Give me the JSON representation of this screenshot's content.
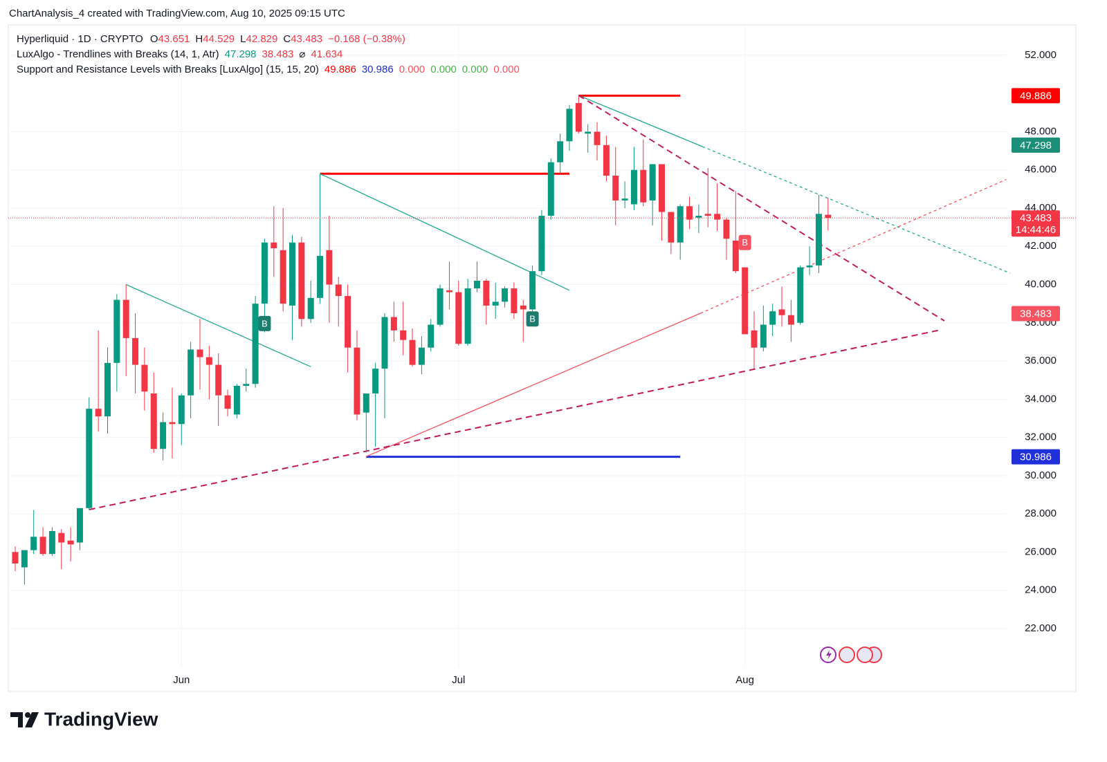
{
  "header": {
    "attribution": "ChartAnalysis_4 created with TradingView.com, Aug 10, 2025 09:15 UTC"
  },
  "chart_data": {
    "type": "candlestick",
    "title": "Hyperliquid · 1D · CRYPTO",
    "ohlc_labels": [
      "O",
      "H",
      "L",
      "C"
    ],
    "change": "−0.168 (−0.38%)",
    "indicators": [
      {
        "name": "LuxAlgo - Trendlines with Breaks (14, 1, Atr)",
        "items": [
          {
            "text": "47.298",
            "color": "#089981"
          },
          {
            "text": "38.483",
            "color": "#f23645"
          },
          {
            "text": "⌀",
            "color": "#131722"
          },
          {
            "text": "41.634",
            "color": "#f23645"
          }
        ]
      },
      {
        "name": "Support and Resistance Levels with Breaks [LuxAlgo] (15, 15, 20)",
        "items": [
          {
            "text": "49.886",
            "color": "#ff0000"
          },
          {
            "text": "30.986",
            "color": "#1e2fd8"
          },
          {
            "text": "0.000",
            "color": "#f7525f"
          },
          {
            "text": "0.000",
            "color": "#4caf50"
          },
          {
            "text": "0.000",
            "color": "#4caf50"
          },
          {
            "text": "0.000",
            "color": "#f7525f"
          }
        ]
      }
    ],
    "categories": [
      null,
      null,
      null,
      null,
      null,
      null,
      null,
      null,
      null,
      null,
      null,
      null,
      null,
      null,
      null,
      null,
      null,
      null,
      "Jun",
      null,
      null,
      null,
      null,
      null,
      null,
      null,
      null,
      null,
      null,
      null,
      null,
      null,
      null,
      null,
      null,
      null,
      null,
      null,
      null,
      null,
      null,
      null,
      null,
      null,
      null,
      null,
      null,
      null,
      "Jul",
      null,
      null,
      null,
      null,
      null,
      null,
      null,
      null,
      null,
      null,
      null,
      null,
      null,
      null,
      null,
      null,
      null,
      null,
      null,
      null,
      null,
      null,
      null,
      null,
      null,
      null,
      null,
      null,
      null,
      null,
      "Aug",
      null,
      null,
      null,
      null,
      null,
      null,
      null,
      null,
      null
    ],
    "open": [
      26.0,
      25.2,
      26.1,
      26.8,
      25.9,
      27.0,
      26.6,
      26.5,
      28.3,
      33.5,
      33.1,
      35.9,
      39.2,
      37.2,
      35.8,
      34.3,
      31.4,
      32.8,
      32.7,
      34.2,
      36.6,
      36.2,
      35.8,
      34.2,
      33.2,
      34.7,
      34.8,
      39.0,
      42.2,
      41.8,
      38.9,
      42.2,
      38.2,
      39.3,
      41.8,
      40.0,
      39.4,
      36.7,
      33.3,
      34.3,
      35.6,
      38.3,
      37.6,
      37.1,
      35.8,
      36.7,
      37.9,
      39.7,
      39.6,
      36.9,
      39.8,
      40.2,
      38.9,
      39.1,
      39.8,
      38.9,
      38.7,
      40.7,
      43.6,
      46.4,
      47.5,
      49.5,
      47.9,
      48.0,
      47.3,
      45.7,
      44.4,
      44.2,
      46.0,
      44.4,
      46.3,
      43.8,
      42.2,
      44.1,
      43.5,
      43.7,
      43.7,
      43.4,
      42.3,
      40.9,
      37.6,
      36.7,
      37.9,
      38.7,
      38.4,
      38.0,
      40.9,
      41.0,
      43.651
    ],
    "high": [
      26.3,
      26.1,
      28.2,
      27.3,
      27.3,
      27.2,
      27.3,
      28.3,
      34.1,
      37.6,
      36.7,
      39.5,
      40.0,
      38.5,
      36.7,
      35.4,
      33.3,
      34.6,
      34.3,
      37.0,
      38.2,
      36.8,
      36.4,
      34.5,
      34.8,
      35.6,
      39.4,
      42.4,
      44.1,
      44.0,
      42.6,
      42.5,
      40.2,
      45.8,
      43.6,
      40.4,
      40.0,
      37.6,
      34.3,
      35.9,
      38.5,
      39.1,
      39.1,
      37.7,
      37.3,
      38.2,
      40.0,
      41.2,
      40.2,
      40.3,
      41.2,
      40.3,
      40.1,
      39.9,
      40.1,
      39.2,
      41.0,
      43.9,
      46.6,
      47.9,
      49.4,
      49.9,
      48.4,
      48.5,
      47.8,
      47.2,
      45.4,
      47.2,
      47.6,
      46.3,
      46.3,
      43.8,
      44.2,
      44.6,
      44.2,
      46.1,
      45.3,
      43.5,
      44.9,
      40.9,
      38.6,
      38.9,
      39.0,
      39.9,
      39.2,
      41.0,
      42.0,
      44.7,
      44.529
    ],
    "low": [
      25.0,
      24.3,
      25.9,
      25.8,
      25.8,
      25.1,
      25.5,
      26.1,
      28.2,
      32.3,
      32.2,
      34.4,
      35.2,
      34.3,
      33.4,
      31.2,
      30.8,
      30.9,
      31.6,
      33.0,
      34.5,
      34.0,
      32.6,
      33.1,
      33.0,
      34.4,
      34.6,
      37.5,
      40.4,
      38.6,
      37.1,
      37.8,
      38.0,
      39.0,
      38.0,
      37.8,
      35.4,
      32.9,
      31.2,
      31.5,
      33.0,
      37.0,
      36.3,
      35.7,
      35.3,
      36.5,
      37.8,
      38.7,
      36.8,
      36.8,
      39.6,
      37.9,
      38.2,
      38.8,
      38.2,
      37.0,
      38.3,
      40.5,
      43.4,
      45.8,
      47.0,
      47.9,
      46.9,
      46.5,
      45.4,
      43.1,
      44.0,
      43.9,
      44.1,
      43.1,
      42.3,
      41.6,
      41.3,
      42.9,
      42.7,
      43.0,
      42.8,
      41.3,
      40.6,
      37.4,
      35.6,
      36.5,
      37.3,
      37.8,
      37.0,
      37.9,
      40.5,
      40.6,
      42.829
    ],
    "close": [
      25.4,
      26.1,
      26.8,
      25.9,
      27.1,
      26.5,
      26.4,
      28.3,
      33.5,
      33.1,
      35.9,
      39.2,
      37.2,
      35.8,
      34.4,
      31.4,
      32.8,
      32.7,
      34.2,
      36.6,
      36.2,
      35.8,
      34.2,
      33.5,
      34.7,
      34.8,
      39.0,
      42.2,
      41.9,
      39.0,
      42.2,
      38.2,
      39.3,
      41.5,
      40.0,
      39.4,
      36.7,
      33.2,
      34.3,
      35.6,
      38.3,
      37.6,
      37.1,
      35.8,
      36.7,
      37.9,
      39.8,
      39.6,
      36.9,
      39.8,
      40.2,
      38.9,
      39.1,
      39.8,
      38.5,
      38.7,
      40.7,
      43.6,
      46.4,
      47.5,
      49.2,
      48.0,
      48.0,
      47.3,
      45.7,
      44.4,
      44.5,
      46.0,
      44.3,
      46.3,
      43.8,
      42.2,
      44.1,
      43.4,
      43.6,
      43.6,
      43.4,
      42.4,
      40.7,
      37.4,
      36.7,
      37.9,
      38.6,
      38.4,
      37.9,
      40.9,
      41.0,
      43.7,
      43.483
    ],
    "up_color": "#089981",
    "down_color": "#f23645",
    "ylim": [
      19.97,
      53.59
    ],
    "yticks": [
      {
        "value": 22,
        "label": "22.000"
      },
      {
        "value": 24,
        "label": "24.000"
      },
      {
        "value": 26,
        "label": "26.000"
      },
      {
        "value": 28,
        "label": "28.000"
      },
      {
        "value": 30,
        "label": "30.000"
      },
      {
        "value": 32,
        "label": "32.000"
      },
      {
        "value": 34,
        "label": "34.000"
      },
      {
        "value": 36,
        "label": "36.000"
      },
      {
        "value": 38,
        "label": "38.000"
      },
      {
        "value": 40,
        "label": "40.000"
      },
      {
        "value": 42,
        "label": "42.000"
      },
      {
        "value": 44,
        "label": "44.000"
      },
      {
        "value": 46,
        "label": "46.000"
      },
      {
        "value": 48,
        "label": "48.000"
      },
      {
        "value": 52,
        "label": "52.000"
      }
    ],
    "grid": true,
    "levels": [
      {
        "value": 45.8,
        "from": 33,
        "to": 60,
        "color": "#ff0000"
      },
      {
        "value": 49.886,
        "from": 61,
        "to": 72,
        "color": "#ff0000"
      },
      {
        "value": 30.986,
        "from": 38,
        "to": 72,
        "color": "#1e2fd8"
      }
    ],
    "trendlines": [
      {
        "x": [
          12,
          32
        ],
        "y": [
          40.0,
          35.7
        ],
        "color": "#22ab94",
        "style": "solid"
      },
      {
        "x": [
          33,
          60
        ],
        "y": [
          45.8,
          39.7
        ],
        "color": "#22ab94",
        "style": "solid"
      },
      {
        "x": [
          61,
          74.4
        ],
        "y": [
          49.9,
          47.22
        ],
        "color": "#22ab94",
        "style": "solid"
      },
      {
        "x": [
          74.4,
          107.7
        ],
        "y": [
          47.22,
          40.6
        ],
        "color": "#22ab94",
        "style": "dotted"
      },
      {
        "x": [
          38,
          74.2
        ],
        "y": [
          31.0,
          38.5
        ],
        "color": "#f7525f",
        "style": "solid"
      },
      {
        "x": [
          74.2,
          107.3
        ],
        "y": [
          38.5,
          45.5
        ],
        "color": "#f7525f",
        "style": "dotted"
      },
      {
        "x": [
          61,
          100.6
        ],
        "y": [
          49.9,
          38.1
        ],
        "color": "#c2185b",
        "style": "dashed"
      },
      {
        "x": [
          8,
          100.2
        ],
        "y": [
          28.22,
          37.63
        ],
        "color": "#c2185b",
        "style": "dashed"
      }
    ],
    "breaks": [
      {
        "x": 27,
        "y": 37.96,
        "label": "B",
        "color": "#1c7c6f"
      },
      {
        "x": 56,
        "y": 38.2,
        "label": "B",
        "color": "#1c7c6f"
      },
      {
        "x": 79,
        "y": 42.2,
        "label": "B",
        "color": "#f7525f"
      }
    ],
    "price_tags": [
      {
        "value": 49.886,
        "color": "#ff0000"
      },
      {
        "value": 47.298,
        "color": "#1c8f78"
      },
      {
        "value": 43.483,
        "color": "#f23645",
        "countdown": "14:44:46"
      },
      {
        "value": 38.483,
        "color": "#f7525f"
      },
      {
        "value": 30.986,
        "color": "#2030d8"
      }
    ]
  },
  "footer": {
    "logo": "TradingView"
  }
}
